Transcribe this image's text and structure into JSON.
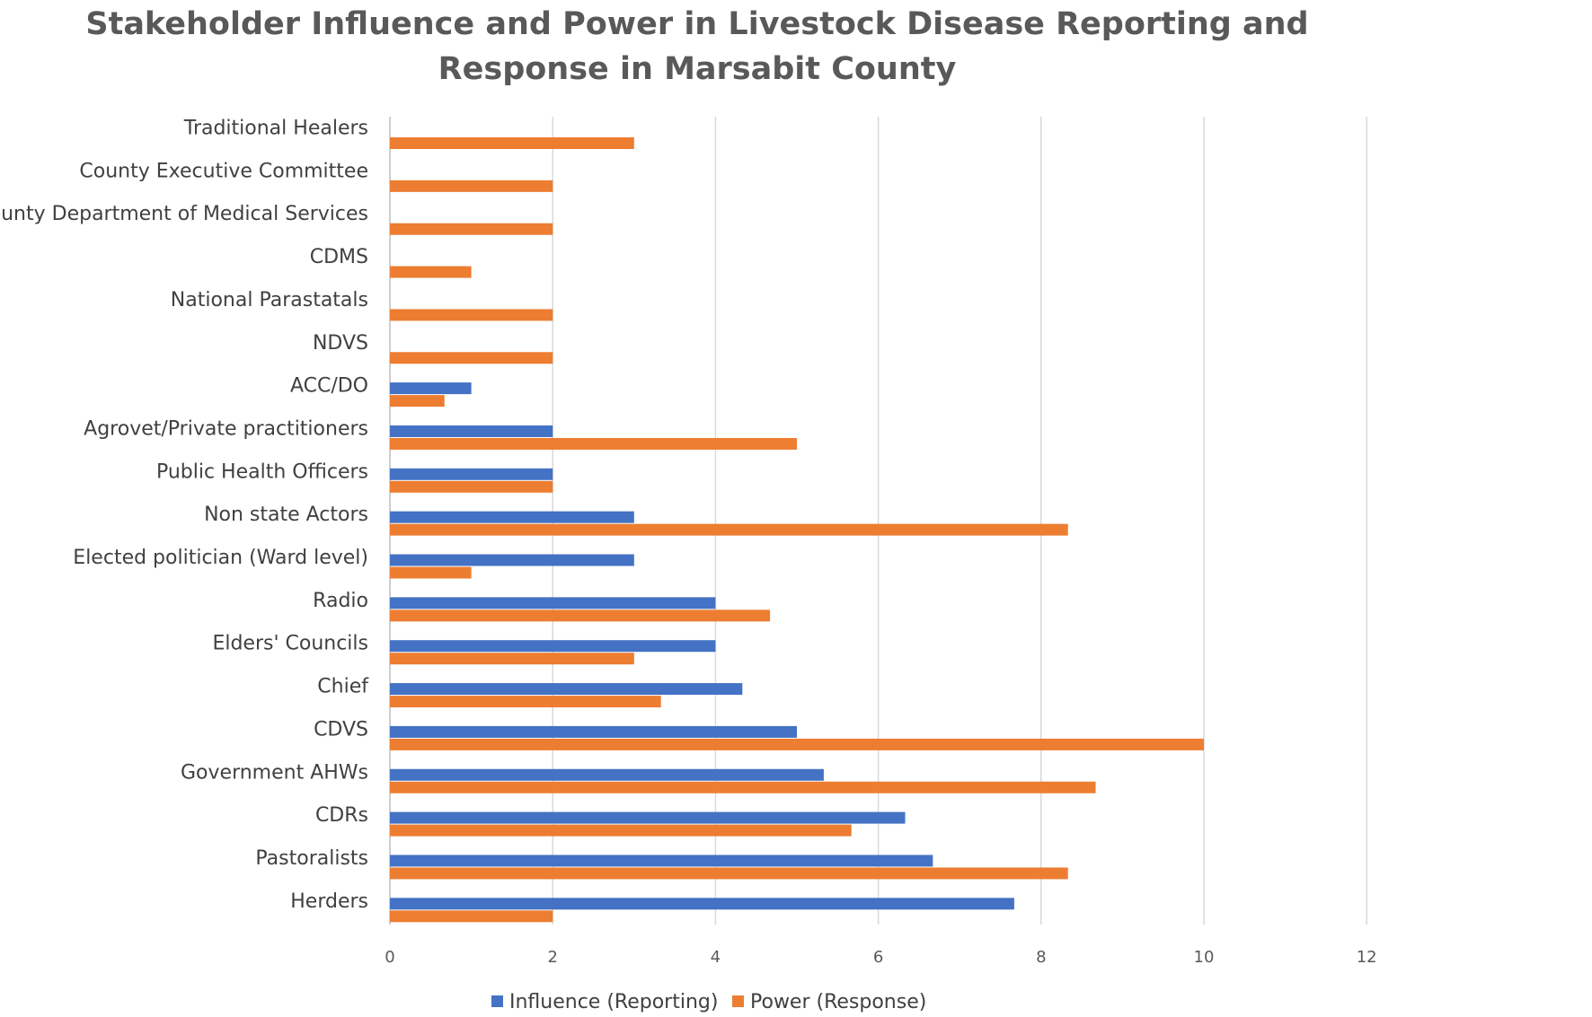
{
  "chart_data": {
    "type": "bar",
    "orientation": "horizontal",
    "title_lines": [
      "Stakeholder Influence and Power in Livestock Disease Reporting and",
      "Response in Marsabit County"
    ],
    "categories": [
      "Traditional Healers",
      "County Executive Committee",
      "County Department of Medical Services",
      "CDMS",
      "National Parastatals",
      "NDVS",
      "ACC/DO",
      "Agrovet/Private practitioners",
      "Public Health Officers",
      "Non state Actors",
      "Elected politician (Ward level)",
      "Radio",
      "Elders' Councils",
      "Chief",
      "CDVS",
      "Government AHWs",
      "CDRs",
      "Pastoralists",
      "Herders"
    ],
    "series": [
      {
        "name": "Influence (Reporting)",
        "color": "#4472C4",
        "values": [
          0,
          0,
          0,
          0,
          0,
          0,
          1,
          2,
          2,
          3,
          3,
          4,
          4,
          4.33,
          5,
          5.33,
          6.33,
          6.67,
          7.67
        ]
      },
      {
        "name": "Power (Response)",
        "color": "#ED7D31",
        "values": [
          3,
          2,
          2,
          1,
          2,
          2,
          0.67,
          5,
          2,
          8.33,
          1,
          4.67,
          3,
          3.33,
          10,
          8.67,
          5.67,
          8.33,
          2
        ]
      }
    ],
    "xlim": [
      0,
      12
    ],
    "xticks": [
      "0",
      "2",
      "4",
      "6",
      "8",
      "10",
      "12"
    ],
    "grid": true,
    "legend_position": "bottom",
    "xlabel": "",
    "ylabel": ""
  }
}
